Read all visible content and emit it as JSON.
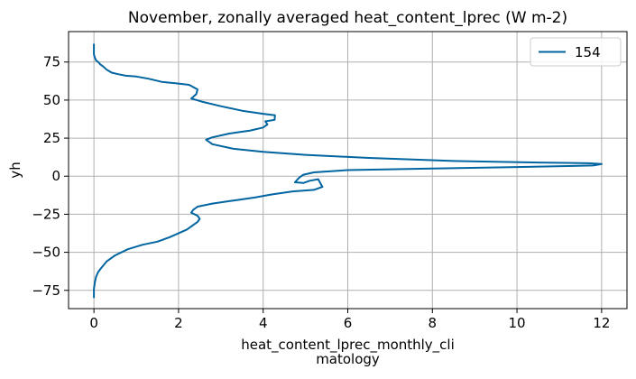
{
  "chart_data": {
    "type": "line",
    "title": "November, zonally averaged heat_content_lprec (W m-2)",
    "xlabel_lines": [
      "heat_content_lprec_monthly_cli",
      "matology"
    ],
    "ylabel": "yh",
    "xlim": [
      -0.6,
      12.6
    ],
    "ylim": [
      -87,
      95
    ],
    "xticks": [
      0,
      2,
      4,
      6,
      8,
      10,
      12
    ],
    "yticks": [
      -75,
      -50,
      -25,
      0,
      25,
      50,
      75
    ],
    "grid": true,
    "legend_position": "top-right",
    "series": [
      {
        "name": "154",
        "color": "#0065a0",
        "x": [
          0.0,
          0.0,
          0.0,
          0.02,
          0.05,
          0.1,
          0.15,
          0.22,
          0.3,
          0.42,
          0.57,
          0.75,
          1.0,
          1.3,
          1.6,
          1.95,
          2.25,
          2.45,
          2.42,
          2.3,
          2.55,
          3.0,
          3.5,
          4.0,
          4.28,
          4.27,
          4.05,
          4.1,
          4.0,
          3.7,
          3.2,
          2.8,
          2.65,
          2.8,
          3.3,
          4.0,
          5.0,
          6.5,
          8.5,
          10.5,
          11.7,
          12.0,
          11.8,
          10.0,
          8.0,
          6.0,
          5.2,
          4.95,
          4.85,
          4.75,
          4.95,
          5.1,
          5.3,
          5.4,
          5.2,
          4.7,
          4.2,
          3.8,
          3.3,
          2.8,
          2.45,
          2.35,
          2.3,
          2.45,
          2.5,
          2.45,
          2.3,
          2.2,
          1.8,
          1.5,
          1.15,
          0.8,
          0.5,
          0.3,
          0.18,
          0.1,
          0.05,
          0.02,
          0.0,
          0.0,
          0.0
        ],
        "y": [
          87,
          84,
          80,
          78,
          76,
          75,
          73.5,
          72,
          70,
          68,
          67,
          66,
          65.5,
          64,
          62,
          61,
          60,
          57,
          54,
          51,
          49,
          46,
          43,
          41,
          40,
          37,
          36,
          34,
          32,
          30,
          28,
          25.5,
          24,
          21,
          18,
          16,
          14,
          12,
          10,
          9,
          8.5,
          8,
          7,
          6,
          5,
          4,
          2.5,
          1,
          -1,
          -4,
          -4.5,
          -3,
          -2,
          -7,
          -9,
          -10,
          -12,
          -14,
          -16,
          -18,
          -20,
          -22,
          -24,
          -26,
          -28,
          -30,
          -33,
          -35,
          -40,
          -43,
          -45,
          -48,
          -52,
          -56,
          -60,
          -63,
          -66,
          -70,
          -74,
          -77,
          -80
        ]
      }
    ]
  }
}
